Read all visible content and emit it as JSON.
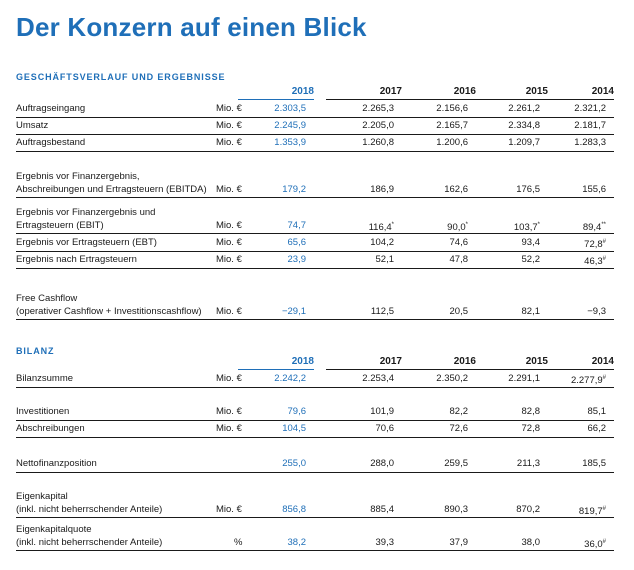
{
  "title": "Der Konzern auf einen Blick",
  "sections": {
    "business": {
      "heading": "GESCHÄFTSVERLAUF UND ERGEBNISSE",
      "years": [
        "2018",
        "2017",
        "2016",
        "2015",
        "2014"
      ]
    },
    "balance": {
      "heading": "BILANZ",
      "years": [
        "2018",
        "2017",
        "2016",
        "2015",
        "2014"
      ]
    }
  },
  "rows": {
    "auftragseingang": {
      "label": "Auftragseingang",
      "unit": "Mio. €",
      "values": [
        "2.303,5",
        "2.265,3",
        "2.156,6",
        "2.261,2",
        "2.321,2"
      ]
    },
    "umsatz": {
      "label": "Umsatz",
      "unit": "Mio. €",
      "values": [
        "2.245,9",
        "2.205,0",
        "2.165,7",
        "2.334,8",
        "2.181,7"
      ]
    },
    "auftragsbestand": {
      "label": "Auftragsbestand",
      "unit": "Mio. €",
      "values": [
        "1.353,9",
        "1.260,8",
        "1.200,6",
        "1.209,7",
        "1.283,3"
      ]
    },
    "ebitda": {
      "label_line1": "Ergebnis vor Finanzergebnis,",
      "label_line2": "Abschreibungen und Ertragsteuern (EBITDA)",
      "unit": "Mio. €",
      "values": [
        "179,2",
        "186,9",
        "162,6",
        "176,5",
        "155,6"
      ]
    },
    "ebit": {
      "label_line1": "Ergebnis vor Finanzergebnis und",
      "label_line2": "Ertragsteuern (EBIT)",
      "unit": "Mio. €",
      "values": [
        "74,7",
        "116,4",
        "90,0",
        "103,7",
        "89,4"
      ],
      "footnotes": [
        "",
        "*",
        "*",
        "*",
        "**"
      ]
    },
    "ebt": {
      "label": "Ergebnis vor Ertragsteuern (EBT)",
      "unit": "Mio. €",
      "values": [
        "65,6",
        "104,2",
        "74,6",
        "93,4",
        "72,8"
      ],
      "footnotes": [
        "",
        "",
        "",
        "",
        "#"
      ]
    },
    "net": {
      "label": "Ergebnis nach Ertragsteuern",
      "unit": "Mio. €",
      "values": [
        "23,9",
        "52,1",
        "47,8",
        "52,2",
        "46,3"
      ],
      "footnotes": [
        "",
        "",
        "",
        "",
        "#"
      ]
    },
    "fcf": {
      "label_line1": "Free Cashflow",
      "label_line2": "(operativer Cashflow + Investitionscashflow)",
      "unit": "Mio. €",
      "values": [
        "−29,1",
        "112,5",
        "20,5",
        "82,1",
        "−9,3"
      ]
    },
    "bilanzsumme": {
      "label": "Bilanzsumme",
      "unit": "Mio. €",
      "values": [
        "2.242,2",
        "2.253,4",
        "2.350,2",
        "2.291,1",
        "2.277,9"
      ],
      "footnotes": [
        "",
        "",
        "",
        "",
        "#"
      ]
    },
    "investitionen": {
      "label": "Investitionen",
      "unit": "Mio. €",
      "values": [
        "79,6",
        "101,9",
        "82,2",
        "82,8",
        "85,1"
      ]
    },
    "abschreibungen": {
      "label": "Abschreibungen",
      "unit": "Mio. €",
      "values": [
        "104,5",
        "70,6",
        "72,6",
        "72,8",
        "66,2"
      ]
    },
    "nettofinanz": {
      "label": "Nettofinanzposition",
      "unit": "Mio. €",
      "values": [
        "255,0",
        "288,0",
        "259,5",
        "211,3",
        "185,5"
      ]
    },
    "eigenkapital": {
      "label_line1": "Eigenkapital",
      "label_line2": "(inkl. nicht beherrschender Anteile)",
      "unit": "Mio. €",
      "values": [
        "856,8",
        "885,4",
        "890,3",
        "870,2",
        "819,7"
      ],
      "footnotes": [
        "",
        "",
        "",
        "",
        "#"
      ]
    },
    "ekquote": {
      "label_line1": "Eigenkapitalquote",
      "label_line2": "(inkl. nicht beherrschender Anteile)",
      "unit": "%",
      "values": [
        "38,2",
        "39,3",
        "37,9",
        "38,0",
        "36,0"
      ],
      "footnotes": [
        "",
        "",
        "",
        "",
        "#"
      ]
    }
  }
}
